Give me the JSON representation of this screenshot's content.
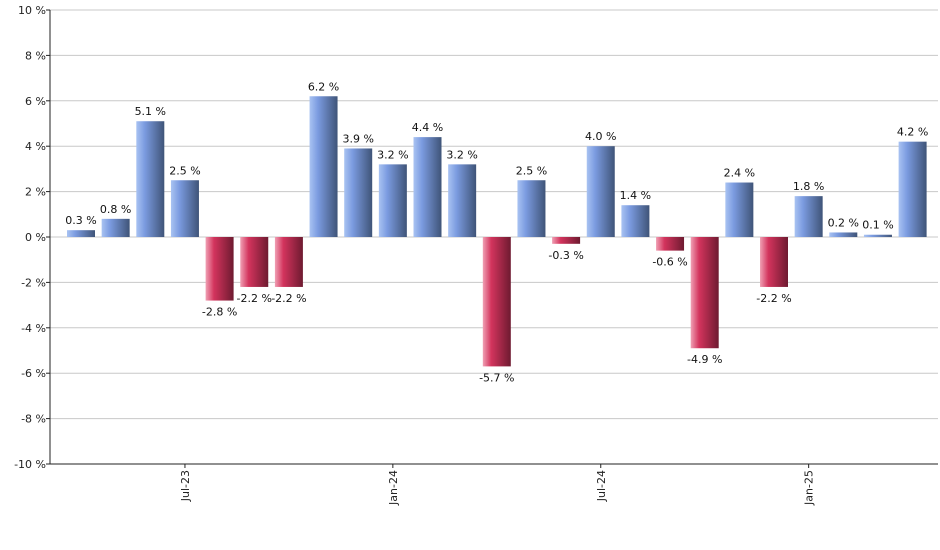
{
  "chart_data": {
    "type": "bar",
    "ylim": [
      -10,
      10
    ],
    "y_ticks": [
      {
        "value": 10,
        "label": "10 %"
      },
      {
        "value": 8,
        "label": "8 %"
      },
      {
        "value": 6,
        "label": "6 %"
      },
      {
        "value": 4,
        "label": "4 %"
      },
      {
        "value": 2,
        "label": "2 %"
      },
      {
        "value": 0,
        "label": "0 %"
      },
      {
        "value": -2,
        "label": "-2 %"
      },
      {
        "value": -4,
        "label": "-4 %"
      },
      {
        "value": -6,
        "label": "-6 %"
      },
      {
        "value": -8,
        "label": "-8 %"
      },
      {
        "value": -10,
        "label": "-10 %"
      }
    ],
    "x_ticks": [
      {
        "index": 3.5,
        "label": "Jul-23"
      },
      {
        "index": 9.5,
        "label": "Jan-24"
      },
      {
        "index": 15.5,
        "label": "Jul-24"
      },
      {
        "index": 21.5,
        "label": "Jan-25"
      }
    ],
    "values": [
      0.3,
      0.8,
      5.1,
      2.5,
      -2.8,
      -2.2,
      -2.2,
      6.2,
      3.9,
      3.2,
      4.4,
      3.2,
      -5.7,
      2.5,
      -0.3,
      4.0,
      1.4,
      -0.6,
      -4.9,
      2.4,
      -2.2,
      1.8,
      0.2,
      0.1,
      4.2
    ],
    "labels": [
      "0.3 %",
      "0.8 %",
      "5.1 %",
      "2.5 %",
      "-2.8 %",
      "-2.2 %",
      "-2.2 %",
      "6.2 %",
      "3.9 %",
      "3.2 %",
      "4.4 %",
      "3.2 %",
      "-5.7 %",
      "2.5 %",
      "-0.3 %",
      "4.0 %",
      "1.4 %",
      "-0.6 %",
      "-4.9 %",
      "2.4 %",
      "-2.2 %",
      "1.8 %",
      "0.2 %",
      "0.1 %",
      "4.2 %"
    ],
    "grid": true,
    "colors": {
      "positive_light": "#a9c3f2",
      "positive_mid": "#7b9be0",
      "positive_dark": "#3f5478",
      "negative_light": "#f0a0b4",
      "negative_mid": "#d3345d",
      "negative_dark": "#6e1a30",
      "grid": "#c8c8c8",
      "axis": "#222222"
    }
  }
}
